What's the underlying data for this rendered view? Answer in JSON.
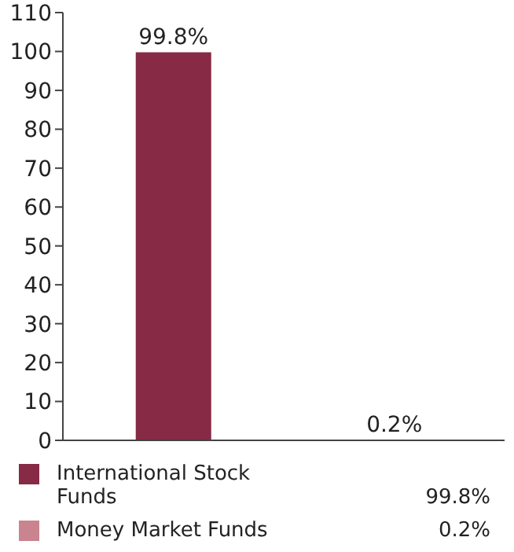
{
  "chart_data": {
    "type": "bar",
    "categories": [
      null,
      null
    ],
    "stacked": true,
    "series": [
      {
        "name": "International Stock Funds",
        "color": "#862a45",
        "values": [
          99.8,
          null
        ],
        "value_labels": [
          "99.8%",
          null
        ]
      },
      {
        "name": "Money Market Funds",
        "color": "#c9848f",
        "values": [
          null,
          0.2
        ],
        "value_labels": [
          null,
          "0.2%"
        ]
      }
    ],
    "ylim": [
      0,
      110
    ],
    "yticks": [
      0,
      10,
      20,
      30,
      40,
      50,
      60,
      70,
      80,
      90,
      100,
      110
    ],
    "tick_labels": "y",
    "legend": "bottom"
  }
}
